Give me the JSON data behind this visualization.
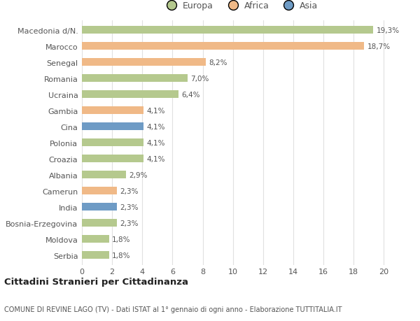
{
  "categories": [
    "Serbia",
    "Moldova",
    "Bosnia-Erzegovina",
    "India",
    "Camerun",
    "Albania",
    "Croazia",
    "Polonia",
    "Cina",
    "Gambia",
    "Ucraina",
    "Romania",
    "Senegal",
    "Marocco",
    "Macedonia d/N."
  ],
  "values": [
    1.8,
    1.8,
    2.3,
    2.3,
    2.3,
    2.9,
    4.1,
    4.1,
    4.1,
    4.1,
    6.4,
    7.0,
    8.2,
    18.7,
    19.3
  ],
  "labels": [
    "1,8%",
    "1,8%",
    "2,3%",
    "2,3%",
    "2,3%",
    "2,9%",
    "4,1%",
    "4,1%",
    "4,1%",
    "4,1%",
    "6,4%",
    "7,0%",
    "8,2%",
    "18,7%",
    "19,3%"
  ],
  "continents": [
    "Europa",
    "Europa",
    "Europa",
    "Asia",
    "Africa",
    "Europa",
    "Europa",
    "Europa",
    "Asia",
    "Africa",
    "Europa",
    "Europa",
    "Africa",
    "Africa",
    "Europa"
  ],
  "colors": {
    "Europa": "#b5c98e",
    "Africa": "#f0b987",
    "Asia": "#6e9bc5"
  },
  "xlim": [
    0,
    21
  ],
  "xticks": [
    0,
    2,
    4,
    6,
    8,
    10,
    12,
    14,
    16,
    18,
    20
  ],
  "title": "Cittadini Stranieri per Cittadinanza",
  "subtitle": "COMUNE DI REVINE LAGO (TV) - Dati ISTAT al 1° gennaio di ogni anno - Elaborazione TUTTITALIA.IT",
  "bg_color": "#ffffff",
  "grid_color": "#e0e0e0",
  "bar_height": 0.5
}
